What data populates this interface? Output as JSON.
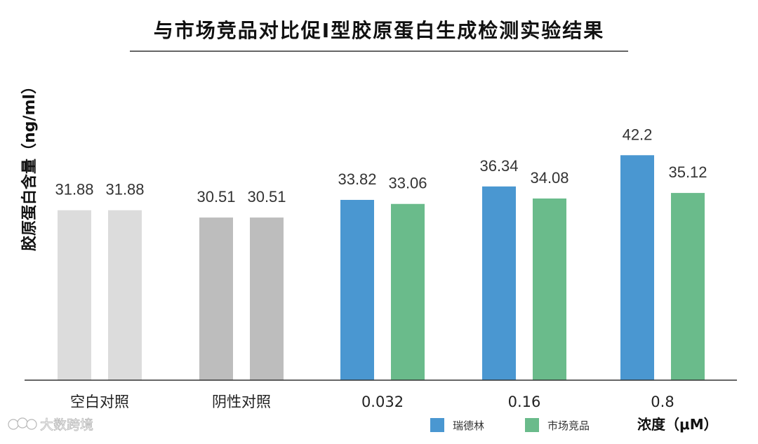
{
  "chart_data": {
    "type": "bar",
    "title": "与市场竞品对比促I型胶原蛋白生成检测实验结果",
    "ylabel": "胶原蛋白含量（ng/ml）",
    "xlabel": "浓度（μM）",
    "categories": [
      "空白对照",
      "阴性对照",
      "0.032",
      "0.16",
      "0.8"
    ],
    "series": [
      {
        "name": "瑞德林",
        "values": [
          31.88,
          30.51,
          33.82,
          36.34,
          42.2
        ]
      },
      {
        "name": "市场竞品",
        "values": [
          31.88,
          30.51,
          33.06,
          34.08,
          35.12
        ]
      }
    ],
    "ylim": [
      0,
      48
    ],
    "grid": false,
    "legend_position": "bottom-right",
    "bar_colors": [
      [
        "#dcdcdc",
        "#dcdcdc"
      ],
      [
        "#bdbdbd",
        "#bdbdbd"
      ],
      [
        "#4a97d1",
        "#6abb8b"
      ],
      [
        "#4a97d1",
        "#6abb8b"
      ],
      [
        "#4a97d1",
        "#6abb8b"
      ]
    ],
    "legend_colors": [
      "#4a97d1",
      "#6abb8b"
    ]
  },
  "watermark": "大数跨境"
}
